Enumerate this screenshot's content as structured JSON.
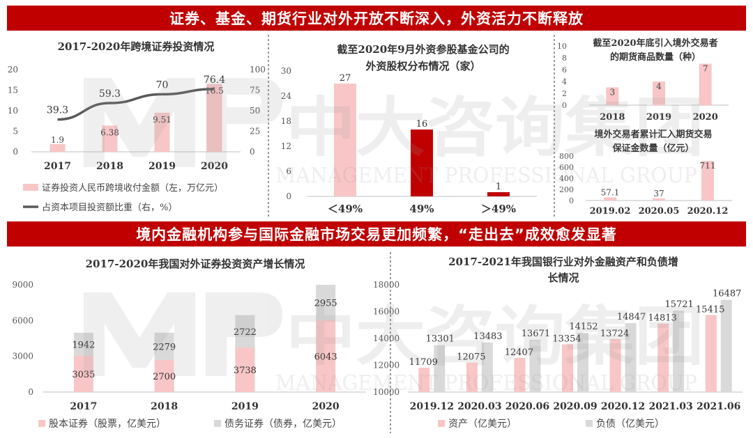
{
  "banners": {
    "top": "证券、基金、期货行业对外开放不断深入，外资活力不断释放",
    "middle": "境内金融机构参与国际金融市场交易更加频繁，“走出去”成效愈发显著"
  },
  "watermark": {
    "cn": "中大咨询集团",
    "en": "MANAGEMENT PROFESSIONAL GROUP"
  },
  "colors": {
    "red": "#c00000",
    "pink": "#f8c6c6",
    "gray": "#d9d9d9",
    "line": "#595959",
    "dark": "#555555"
  },
  "chart_data": [
    {
      "id": "c1",
      "type": "bar+line",
      "title": "2017-2020年跨境证券投资情况",
      "categories": [
        "2017",
        "2018",
        "2019",
        "2020"
      ],
      "y_left_ticks": [
        "0",
        "5",
        "10",
        "15",
        "20"
      ],
      "y_right_ticks": [
        "0",
        "25",
        "50",
        "75",
        "100"
      ],
      "ylim_left": [
        0,
        20
      ],
      "ylim_right": [
        0,
        100
      ],
      "series": [
        {
          "name": "证券投资人民币跨境收付金额（左，万亿元）",
          "type": "bar",
          "axis": "left",
          "values": [
            1.9,
            6.38,
            9.51,
            16.5
          ],
          "labels": [
            "1.9",
            "6.38",
            "9.51",
            "16.5"
          ]
        },
        {
          "name": "占资本项目投资额比重（右，%）",
          "type": "line",
          "axis": "right",
          "values": [
            39.3,
            59.3,
            70,
            76.4
          ],
          "labels": [
            "39.3",
            "59.3",
            "70",
            "76.4"
          ]
        }
      ]
    },
    {
      "id": "c2",
      "type": "bar",
      "title_lines": [
        "截至2020年9月外资参股基金公司的",
        "外资股权分布情况（家）"
      ],
      "categories": [
        "＜49%",
        "49%",
        "＞49%"
      ],
      "y_ticks": [
        "0",
        "6",
        "12",
        "18",
        "24",
        "30"
      ],
      "ylim": [
        0,
        30
      ],
      "values": [
        27,
        16,
        1
      ],
      "labels": [
        "27",
        "16",
        "1"
      ],
      "bar_colors": [
        "#f8c6c6",
        "#c00000",
        "#c00000"
      ]
    },
    {
      "id": "c3",
      "type": "bar",
      "title_lines": [
        "截至2020年底引入境外交易者",
        "的期货商品数量（种）"
      ],
      "categories": [
        "2018",
        "2019",
        "2020"
      ],
      "y_ticks": [
        "0",
        "2",
        "4",
        "6",
        "8",
        "10"
      ],
      "ylim": [
        0,
        10
      ],
      "values": [
        3,
        4,
        7
      ],
      "labels": [
        "3",
        "4",
        "7"
      ]
    },
    {
      "id": "c4",
      "type": "bar",
      "title_lines": [
        "境外交易者累计汇入期货交易",
        "保证金数量（亿元）"
      ],
      "categories": [
        "2019.02",
        "2020.05",
        "2020.12"
      ],
      "y_ticks": [
        "0",
        "200",
        "400",
        "600",
        "800"
      ],
      "ylim": [
        0,
        800
      ],
      "values": [
        57.1,
        37,
        711
      ],
      "labels": [
        "57.1",
        "37",
        "711"
      ]
    },
    {
      "id": "c5",
      "type": "stacked-bar",
      "title": "2017-2020年我国对外证券投资资产增长情况",
      "categories": [
        "2017",
        "2018",
        "2019",
        "2020"
      ],
      "y_left_ticks": [
        "0",
        "3000",
        "6000",
        "9000"
      ],
      "y_right_ticks": [
        "10000",
        "12000",
        "14000",
        "16000",
        "18000"
      ],
      "ylim": [
        0,
        9000
      ],
      "series": [
        {
          "name": "股本证券（股票，亿美元）",
          "values": [
            3035,
            2700,
            3738,
            6043
          ],
          "labels": [
            "3035",
            "2700",
            "3738",
            "6043"
          ]
        },
        {
          "name": "债务证券（债券，亿美元）",
          "values": [
            1942,
            2279,
            2722,
            2955
          ],
          "labels": [
            "1942",
            "2279",
            "2722",
            "2955"
          ]
        }
      ]
    },
    {
      "id": "c6",
      "type": "bar",
      "title_lines": [
        "2017-2021年我国银行业对外金融资产和负债增",
        "长情况"
      ],
      "categories": [
        "2019.12",
        "2020.03",
        "2020.06",
        "2020.09",
        "2020.12",
        "2021.03",
        "2021.06"
      ],
      "ylim": [
        10000,
        17000
      ],
      "series": [
        {
          "name": "资产（亿美元）",
          "values": [
            11709,
            12075,
            12407,
            13354,
            13724,
            14813,
            15415
          ],
          "labels": [
            "11709",
            "12075",
            "12407",
            "13354",
            "13724",
            "14813",
            "15415"
          ]
        },
        {
          "name": "负债（亿美元）",
          "values": [
            13301,
            13483,
            13671,
            14152,
            14847,
            15721,
            16487
          ],
          "labels": [
            "13301",
            "13483",
            "13671",
            "14152",
            "14847",
            "15721",
            "16487"
          ]
        }
      ]
    }
  ]
}
